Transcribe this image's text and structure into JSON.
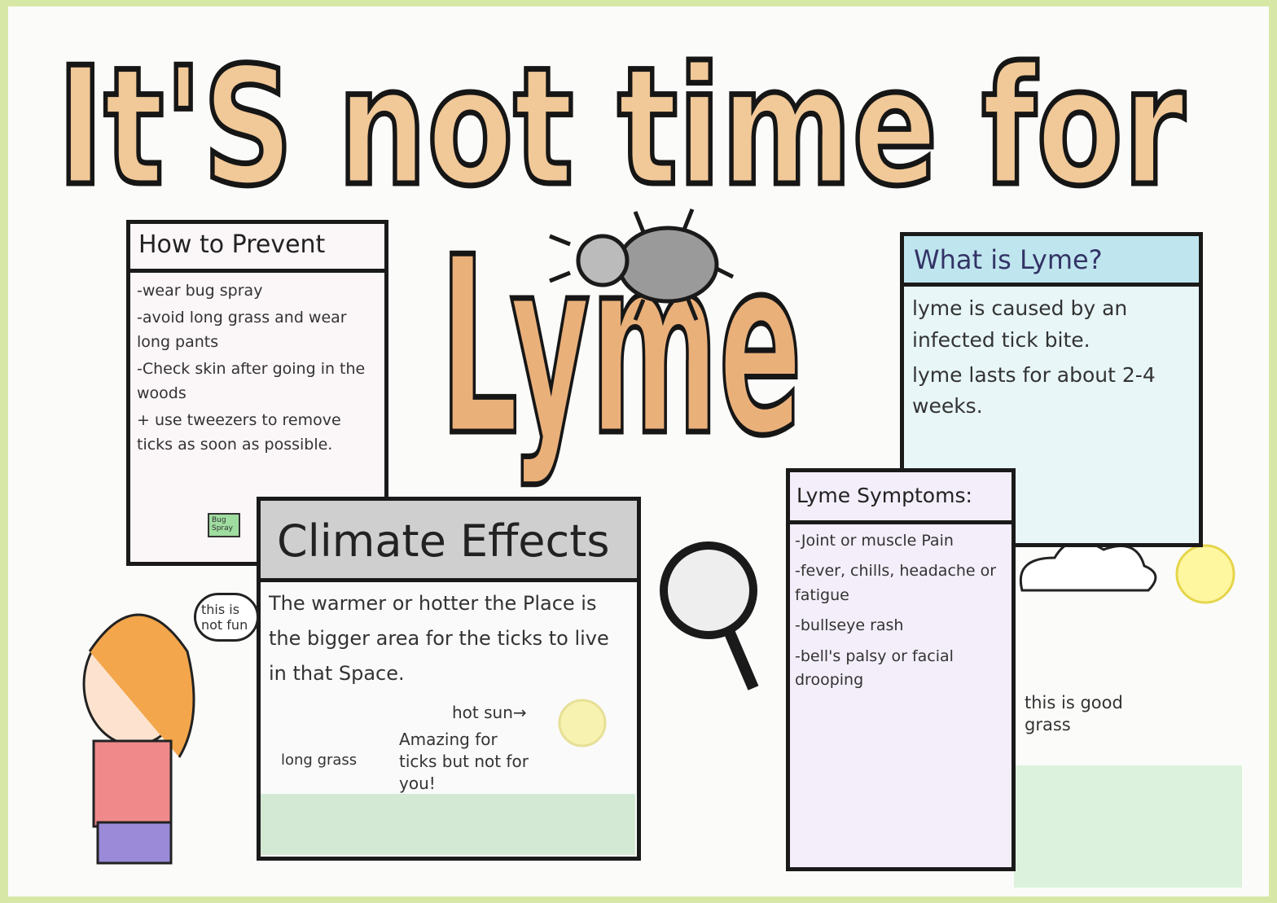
{
  "title": {
    "line1": "It'S not time for",
    "line2": "Lyme"
  },
  "prevent": {
    "heading": "How to Prevent",
    "items": [
      "-wear bug spray",
      "-avoid long grass and wear long pants",
      "-Check skin after going in the woods",
      "+ use tweezers to remove ticks as soon as possible."
    ],
    "can_label": "Bug Spray"
  },
  "what": {
    "heading": "What is Lyme?",
    "lines": [
      "lyme is caused by an infected tick bite.",
      "lyme lasts for about 2-4 weeks."
    ]
  },
  "climate": {
    "heading": "Climate Effects",
    "body": "The warmer or hotter the Place is the bigger area for the ticks to live in that Space.",
    "hot_sun": "hot sun→",
    "amazing": "Amazing for ticks but not for you!",
    "long_grass": "long grass"
  },
  "symptoms": {
    "heading": "Lyme Symptoms:",
    "items": [
      "-Joint or muscle Pain",
      "-fever, chills, headache or fatigue",
      "-bullseye rash",
      "-bell's palsy or facial drooping"
    ]
  },
  "speech": "this is not fun",
  "good_grass": "this is good grass"
}
